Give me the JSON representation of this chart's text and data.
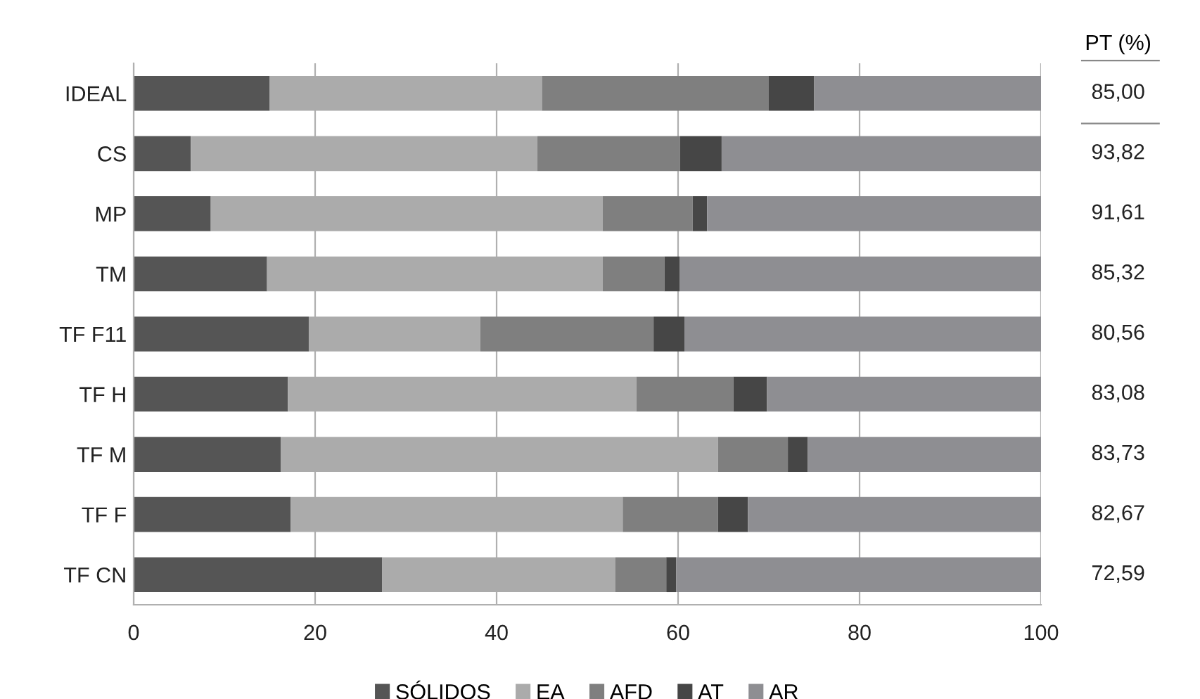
{
  "chart_data": {
    "type": "bar",
    "orientation": "horizontal",
    "stacked": true,
    "categories": [
      "IDEAL",
      "CS",
      "MP",
      "TM",
      "TF F11",
      "TF H",
      "TF M",
      "TF F",
      "TF CN"
    ],
    "series": [
      {
        "name": "SÓLIDOS",
        "color": "#555555",
        "values": [
          15,
          6.3,
          8.5,
          14.7,
          19.3,
          17,
          16.2,
          17.3,
          27.4
        ]
      },
      {
        "name": "EA",
        "color": "#ababab",
        "values": [
          30,
          38.2,
          43.2,
          37,
          18.9,
          38.4,
          48.2,
          36.6,
          25.7
        ]
      },
      {
        "name": "AFD",
        "color": "#7f7f7f",
        "values": [
          25,
          15.7,
          9.9,
          6.8,
          19.1,
          10.7,
          7.7,
          10.5,
          5.6
        ]
      },
      {
        "name": "AT",
        "color": "#464646",
        "values": [
          5,
          4.6,
          1.6,
          1.7,
          3.4,
          3.7,
          2.2,
          3.3,
          1.1
        ]
      },
      {
        "name": "AR",
        "color": "#8e8e92",
        "values": [
          25,
          35.2,
          36.8,
          39.8,
          39.3,
          30.2,
          25.7,
          32.3,
          40.2
        ]
      }
    ],
    "xlim": [
      0,
      100
    ],
    "xticks": [
      0,
      20,
      40,
      60,
      80,
      100
    ],
    "grid": "x",
    "legend": "bottom",
    "annotations": [
      "PT (%)",
      "85,00",
      "93,82",
      "91,61",
      "85,32",
      "80,56",
      "83,08",
      "83,73",
      "82,67",
      "72,59"
    ]
  }
}
